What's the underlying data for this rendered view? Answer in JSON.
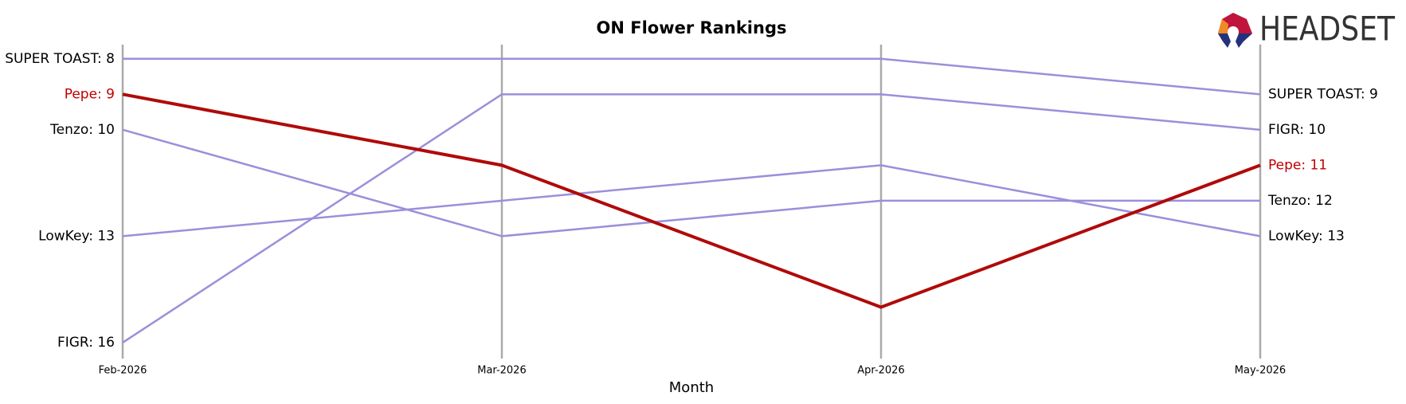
{
  "chart_data": {
    "type": "bump",
    "title": "ON Flower Rankings",
    "x_label": "Month",
    "logo_text": "HEADSET",
    "categories": [
      "Feb-2026",
      "Mar-2026",
      "Apr-2026",
      "May-2026"
    ],
    "ylim": [
      16.45,
      7.6
    ],
    "series": [
      {
        "label_start": "SUPER TOAST: 8",
        "label_end": "SUPER TOAST: 9",
        "color": "#9b8fdb",
        "label_color": "#000000",
        "values": [
          8,
          8,
          8,
          9
        ]
      },
      {
        "label_start": "Tenzo: 10",
        "label_end": "Tenzo: 12",
        "color": "#9b8fdb",
        "label_color": "#000000",
        "values": [
          10,
          13,
          12,
          12
        ]
      },
      {
        "label_start": "LowKey: 13",
        "label_end": "LowKey: 13",
        "color": "#9b8fdb",
        "label_color": "#000000",
        "values": [
          13,
          12,
          11,
          13
        ]
      },
      {
        "label_start": "FIGR: 16",
        "label_end": "FIGR: 10",
        "color": "#9b8fdb",
        "label_color": "#000000",
        "values": [
          16,
          9,
          9,
          10
        ]
      },
      {
        "label_start": "Pepe: 9",
        "label_end": "Pepe: 11",
        "color": "#b00a0a",
        "label_color": "#c00000",
        "highlight": true,
        "values": [
          9,
          11,
          15,
          11
        ]
      }
    ]
  }
}
